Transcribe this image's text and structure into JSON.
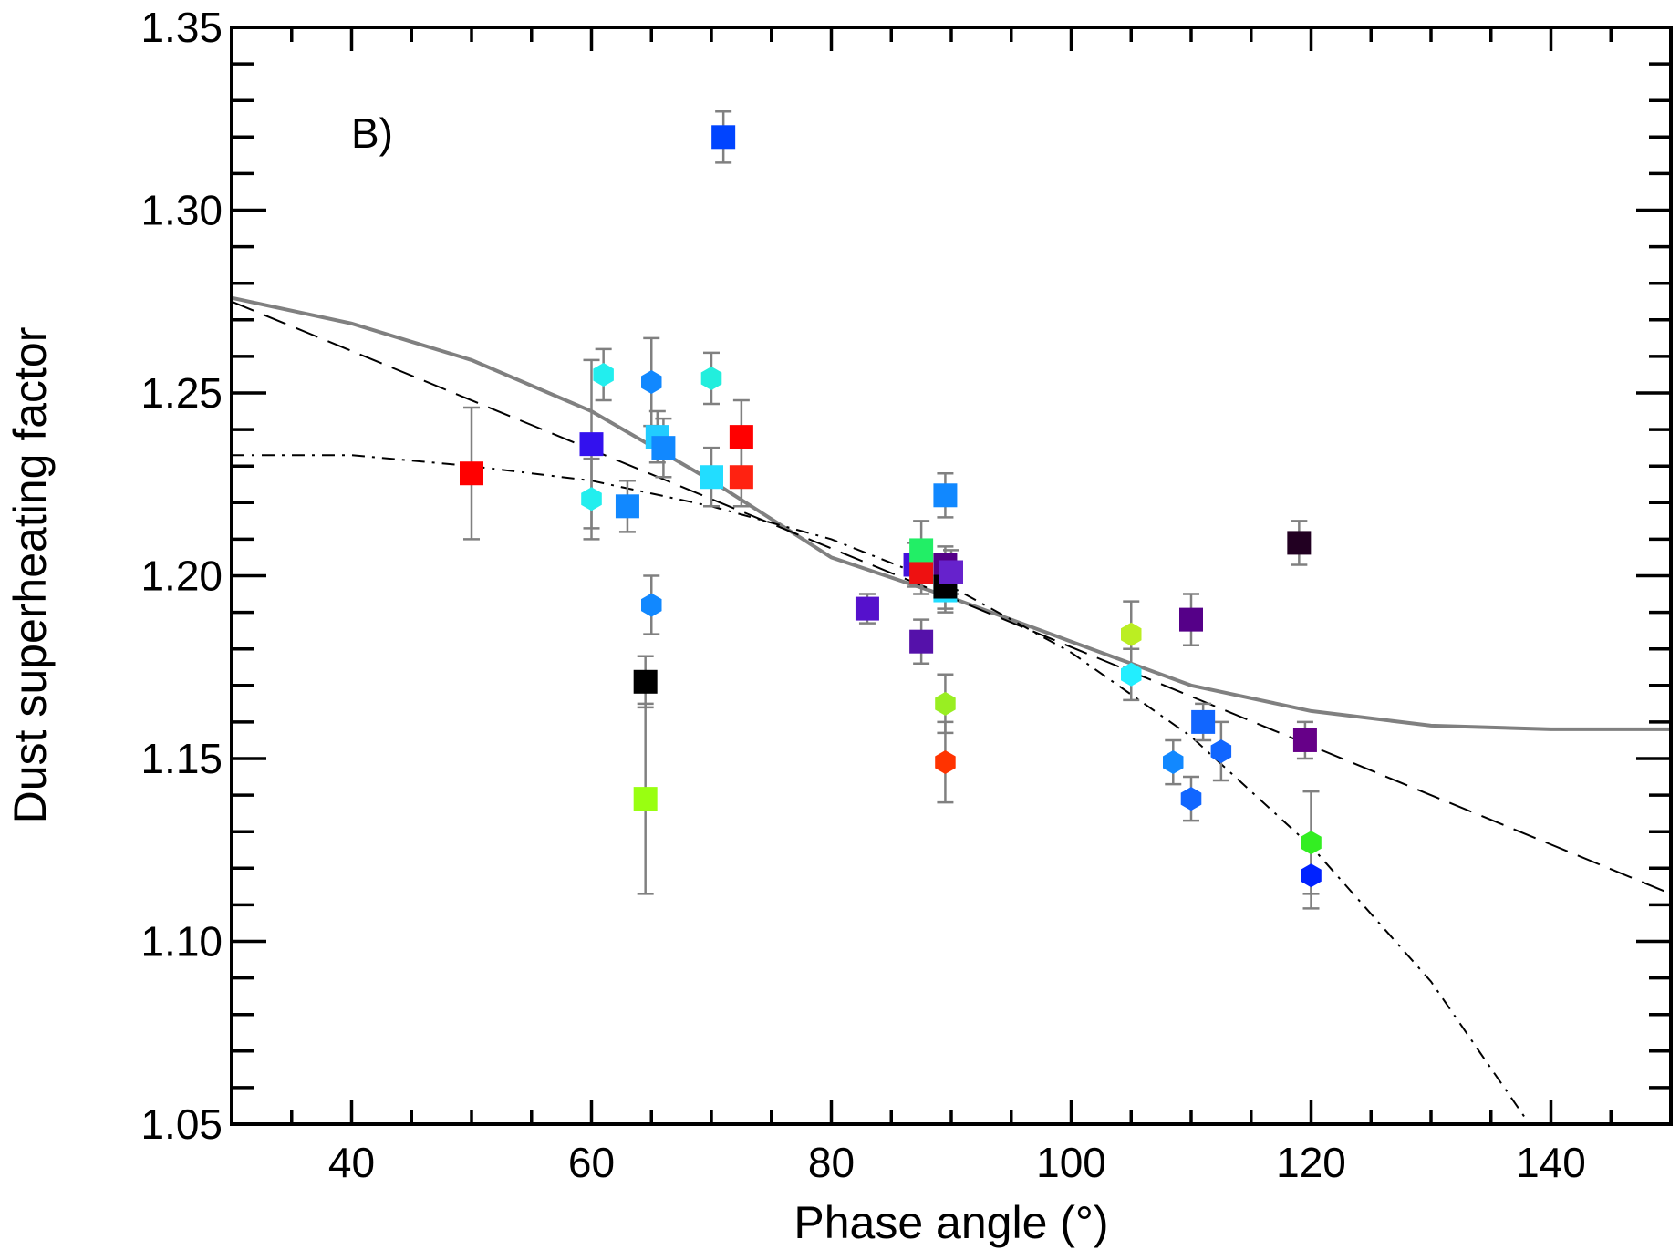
{
  "chart_data": {
    "type": "scatter",
    "panel_label": "B)",
    "xlabel": "Phase angle (°)",
    "ylabel": "Dust superheating factor",
    "xlim": [
      30,
      150
    ],
    "ylim": [
      1.05,
      1.35
    ],
    "x_ticks": [
      40,
      60,
      80,
      100,
      120,
      140
    ],
    "x_tick_labels": [
      "40",
      "60",
      "80",
      "100",
      "120",
      "140"
    ],
    "y_ticks": [
      1.05,
      1.1,
      1.15,
      1.2,
      1.25,
      1.3,
      1.35
    ],
    "y_tick_labels": [
      "1.05",
      "1.10",
      "1.15",
      "1.20",
      "1.25",
      "1.30",
      "1.35"
    ],
    "x_minor_step": 5,
    "y_minor_step": 0.01,
    "grid": false,
    "curves": [
      {
        "name": "solid",
        "style": "solid",
        "color": "#808080",
        "x": [
          30,
          40,
          50,
          60,
          70,
          80,
          90,
          100,
          110,
          120,
          130,
          140,
          150
        ],
        "y": [
          1.276,
          1.269,
          1.259,
          1.245,
          1.226,
          1.205,
          1.194,
          1.182,
          1.17,
          1.163,
          1.159,
          1.158,
          1.158
        ]
      },
      {
        "name": "dashed",
        "style": "dashed",
        "color": "#000000",
        "x": [
          30,
          150
        ],
        "y": [
          1.275,
          1.113
        ]
      },
      {
        "name": "dash-dot",
        "style": "dashdot",
        "color": "#000000",
        "x": [
          30,
          40,
          50,
          60,
          70,
          80,
          90,
          100,
          110,
          120,
          130,
          138
        ],
        "y": [
          1.233,
          1.233,
          1.23,
          1.226,
          1.219,
          1.21,
          1.197,
          1.179,
          1.156,
          1.126,
          1.089,
          1.051
        ]
      }
    ],
    "points": [
      {
        "x": 50,
        "y": 1.228,
        "err": 0.018,
        "marker": "square",
        "color": "#ff0000"
      },
      {
        "x": 60,
        "y": 1.236,
        "err": 0.023,
        "marker": "square",
        "color": "#3311ee"
      },
      {
        "x": 60,
        "y": 1.221,
        "err": 0.011,
        "marker": "hexagon",
        "color": "#22eeee"
      },
      {
        "x": 61,
        "y": 1.255,
        "err": 0.007,
        "marker": "hexagon",
        "color": "#22eeee"
      },
      {
        "x": 63,
        "y": 1.219,
        "err": 0.007,
        "marker": "square",
        "color": "#1188ff"
      },
      {
        "x": 64.5,
        "y": 1.171,
        "err": 0.007,
        "marker": "square",
        "color": "#000000"
      },
      {
        "x": 64.5,
        "y": 1.139,
        "err": 0.026,
        "marker": "square",
        "color": "#99ff11"
      },
      {
        "x": 65,
        "y": 1.253,
        "err": 0.012,
        "marker": "hexagon",
        "color": "#1188ff"
      },
      {
        "x": 65,
        "y": 1.192,
        "err": 0.008,
        "marker": "hexagon",
        "color": "#1188ff"
      },
      {
        "x": 65.5,
        "y": 1.238,
        "err": 0.007,
        "marker": "square",
        "color": "#22ccff"
      },
      {
        "x": 66,
        "y": 1.235,
        "err": 0.008,
        "marker": "square",
        "color": "#1188ff"
      },
      {
        "x": 70,
        "y": 1.254,
        "err": 0.007,
        "marker": "hexagon",
        "color": "#22eedd"
      },
      {
        "x": 70,
        "y": 1.227,
        "err": 0.008,
        "marker": "square",
        "color": "#22ddff"
      },
      {
        "x": 71,
        "y": 1.32,
        "err": 0.007,
        "marker": "square",
        "color": "#0044ff"
      },
      {
        "x": 72.5,
        "y": 1.238,
        "err": 0.01,
        "marker": "square",
        "color": "#ff0000"
      },
      {
        "x": 72.5,
        "y": 1.227,
        "err": 0.008,
        "marker": "square",
        "color": "#ff2211"
      },
      {
        "x": 83,
        "y": 1.191,
        "err": 0.004,
        "marker": "square",
        "color": "#5511cc"
      },
      {
        "x": 87,
        "y": 1.203,
        "err": 0.006,
        "marker": "square",
        "color": "#4411dd"
      },
      {
        "x": 87.5,
        "y": 1.201,
        "err": 0.006,
        "marker": "square",
        "color": "#ee1111"
      },
      {
        "x": 87.5,
        "y": 1.182,
        "err": 0.006,
        "marker": "square",
        "color": "#5511aa"
      },
      {
        "x": 87.5,
        "y": 1.207,
        "err": 0.008,
        "marker": "square",
        "color": "#22ee66"
      },
      {
        "x": 89.5,
        "y": 1.165,
        "err": 0.008,
        "marker": "hexagon",
        "color": "#99ee22"
      },
      {
        "x": 89.5,
        "y": 1.149,
        "err": 0.011,
        "marker": "hexagon",
        "color": "#ff3300"
      },
      {
        "x": 89.5,
        "y": 1.222,
        "err": 0.006,
        "marker": "square",
        "color": "#1188ff"
      },
      {
        "x": 89.5,
        "y": 1.203,
        "err": 0.005,
        "marker": "square",
        "color": "#550088"
      },
      {
        "x": 89.5,
        "y": 1.196,
        "err": 0.006,
        "marker": "square",
        "color": "#22ddff"
      },
      {
        "x": 89.5,
        "y": 1.197,
        "err": 0.006,
        "marker": "square",
        "color": "#000000"
      },
      {
        "x": 90,
        "y": 1.201,
        "err": 0.006,
        "marker": "square",
        "color": "#6622cc"
      },
      {
        "x": 105,
        "y": 1.184,
        "err": 0.009,
        "marker": "hexagon",
        "color": "#bbee22"
      },
      {
        "x": 105,
        "y": 1.173,
        "err": 0.007,
        "marker": "hexagon",
        "color": "#22eeff"
      },
      {
        "x": 108.5,
        "y": 1.149,
        "err": 0.006,
        "marker": "hexagon",
        "color": "#1188ff"
      },
      {
        "x": 110,
        "y": 1.139,
        "err": 0.006,
        "marker": "hexagon",
        "color": "#1166ff"
      },
      {
        "x": 110,
        "y": 1.188,
        "err": 0.007,
        "marker": "square",
        "color": "#550088"
      },
      {
        "x": 111,
        "y": 1.16,
        "err": 0.005,
        "marker": "square",
        "color": "#1166ff"
      },
      {
        "x": 112.5,
        "y": 1.152,
        "err": 0.008,
        "marker": "hexagon",
        "color": "#1166ff"
      },
      {
        "x": 119,
        "y": 1.209,
        "err": 0.006,
        "marker": "square",
        "color": "#220022"
      },
      {
        "x": 119.5,
        "y": 1.155,
        "err": 0.005,
        "marker": "square",
        "color": "#660088"
      },
      {
        "x": 120,
        "y": 1.127,
        "err": 0.014,
        "marker": "hexagon",
        "color": "#33ee22"
      },
      {
        "x": 120,
        "y": 1.118,
        "err": 0.009,
        "marker": "hexagon",
        "color": "#0022ff"
      }
    ]
  }
}
